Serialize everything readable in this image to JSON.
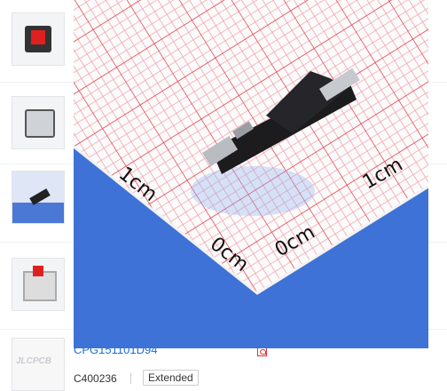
{
  "list": {
    "part_number": "CPG151101D94",
    "code": "C400236",
    "library": "Extended",
    "watermark": "JLCPCB"
  },
  "zoom_image": {
    "scale_labels": [
      "1cm",
      "1cm",
      "0cm",
      "0cm"
    ]
  }
}
